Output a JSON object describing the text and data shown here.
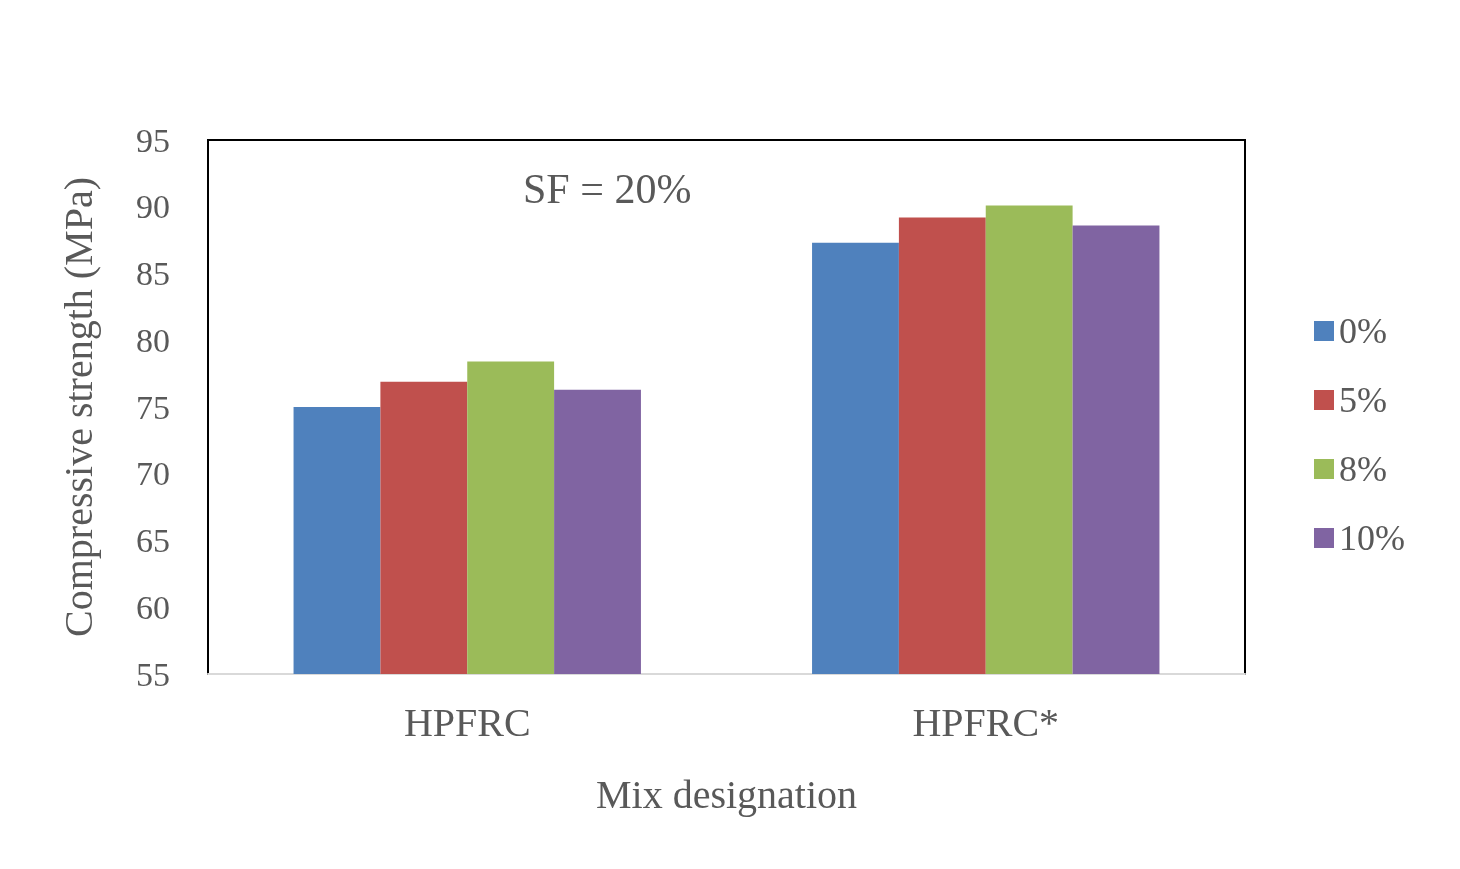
{
  "chart_data": {
    "type": "bar",
    "xlabel": "Mix designation",
    "ylabel": "Compressive strength (MPa)",
    "categories": [
      "HPFRC",
      "HPFRC*"
    ],
    "series": [
      {
        "name": "0%",
        "color": "#4f81bd",
        "values": [
          75.0,
          87.3
        ]
      },
      {
        "name": "5%",
        "color": "#c0504d",
        "values": [
          76.9,
          89.2
        ]
      },
      {
        "name": "8%",
        "color": "#9bbb59",
        "values": [
          78.4,
          90.1
        ]
      },
      {
        "name": "10%",
        "color": "#8064a2",
        "values": [
          76.3,
          88.6
        ]
      }
    ],
    "ylim": [
      55,
      95
    ],
    "yticks": [
      55,
      60,
      65,
      70,
      75,
      80,
      85,
      90,
      95
    ],
    "annotations": [
      "SF = 20%"
    ],
    "grid": false,
    "legend": "right"
  }
}
